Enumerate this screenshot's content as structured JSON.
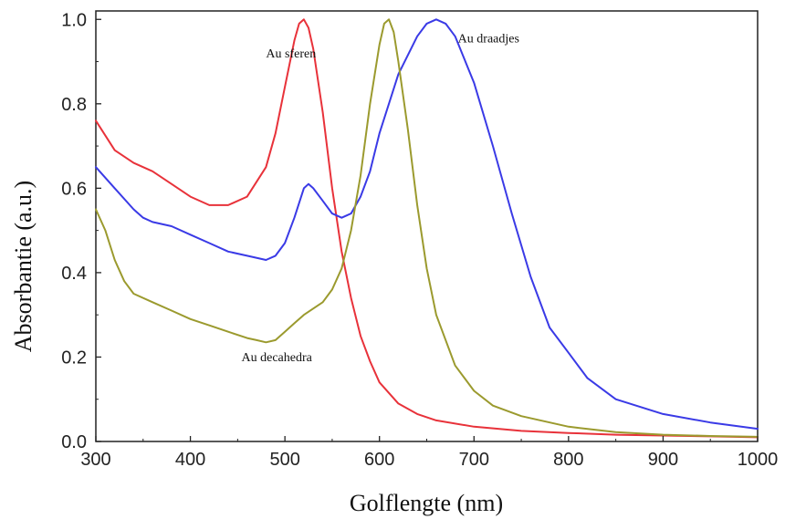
{
  "chart_data": {
    "type": "line",
    "xlabel": "Golflengte (nm)",
    "ylabel": "Absorbantie (a.u.)",
    "xlim": [
      300,
      1000
    ],
    "ylim": [
      0,
      1.02
    ],
    "x_ticks": [
      300,
      400,
      500,
      600,
      700,
      800,
      900,
      1000
    ],
    "y_ticks": [
      0.0,
      0.2,
      0.4,
      0.6,
      0.8,
      1.0
    ],
    "x_tick_labels": [
      "300",
      "400",
      "500",
      "600",
      "700",
      "800",
      "900",
      "1000"
    ],
    "y_tick_labels": [
      "0.0",
      "0.2",
      "0.4",
      "0.6",
      "0.8",
      "1.0"
    ],
    "grid": false,
    "series": [
      {
        "name": "Au sferen",
        "color": "#e8323a",
        "x": [
          300,
          320,
          340,
          360,
          380,
          400,
          420,
          440,
          460,
          480,
          490,
          500,
          510,
          515,
          520,
          525,
          530,
          540,
          550,
          560,
          570,
          580,
          590,
          600,
          620,
          640,
          660,
          700,
          750,
          800,
          850,
          900,
          950,
          1000
        ],
        "y": [
          0.76,
          0.69,
          0.66,
          0.64,
          0.61,
          0.58,
          0.56,
          0.56,
          0.58,
          0.65,
          0.73,
          0.84,
          0.95,
          0.99,
          1.0,
          0.98,
          0.93,
          0.78,
          0.6,
          0.45,
          0.34,
          0.25,
          0.19,
          0.14,
          0.09,
          0.065,
          0.05,
          0.035,
          0.025,
          0.02,
          0.016,
          0.014,
          0.012,
          0.01
        ]
      },
      {
        "name": "Au draadjes",
        "color": "#3a3ae6",
        "x": [
          300,
          320,
          340,
          350,
          360,
          380,
          400,
          420,
          440,
          460,
          480,
          490,
          500,
          510,
          520,
          525,
          530,
          540,
          550,
          560,
          570,
          580,
          590,
          600,
          620,
          640,
          650,
          660,
          670,
          680,
          700,
          720,
          740,
          760,
          780,
          800,
          820,
          850,
          900,
          950,
          1000
        ],
        "y": [
          0.65,
          0.6,
          0.55,
          0.53,
          0.52,
          0.51,
          0.49,
          0.47,
          0.45,
          0.44,
          0.43,
          0.44,
          0.47,
          0.53,
          0.6,
          0.61,
          0.6,
          0.57,
          0.54,
          0.53,
          0.54,
          0.58,
          0.64,
          0.73,
          0.87,
          0.96,
          0.99,
          1.0,
          0.99,
          0.96,
          0.85,
          0.7,
          0.54,
          0.39,
          0.27,
          0.21,
          0.15,
          0.1,
          0.065,
          0.045,
          0.03
        ]
      },
      {
        "name": "Au decahedra",
        "color": "#9b9a2e",
        "x": [
          300,
          310,
          320,
          330,
          340,
          360,
          380,
          400,
          420,
          440,
          460,
          470,
          480,
          490,
          500,
          510,
          520,
          540,
          550,
          560,
          570,
          580,
          590,
          600,
          605,
          610,
          615,
          620,
          630,
          640,
          650,
          660,
          680,
          700,
          720,
          750,
          800,
          850,
          900,
          950,
          1000
        ],
        "y": [
          0.55,
          0.5,
          0.43,
          0.38,
          0.35,
          0.33,
          0.31,
          0.29,
          0.275,
          0.26,
          0.245,
          0.24,
          0.235,
          0.24,
          0.26,
          0.28,
          0.3,
          0.33,
          0.36,
          0.41,
          0.5,
          0.63,
          0.8,
          0.94,
          0.99,
          1.0,
          0.97,
          0.9,
          0.74,
          0.56,
          0.41,
          0.3,
          0.18,
          0.12,
          0.085,
          0.06,
          0.035,
          0.022,
          0.016,
          0.013,
          0.011
        ]
      }
    ],
    "annotations": [
      {
        "text": "Au sferen",
        "x": 480,
        "y": 0.91
      },
      {
        "text": "Au draadjes",
        "x": 683,
        "y": 0.945
      },
      {
        "text": "Au decahedra",
        "x": 454,
        "y": 0.19
      }
    ]
  }
}
